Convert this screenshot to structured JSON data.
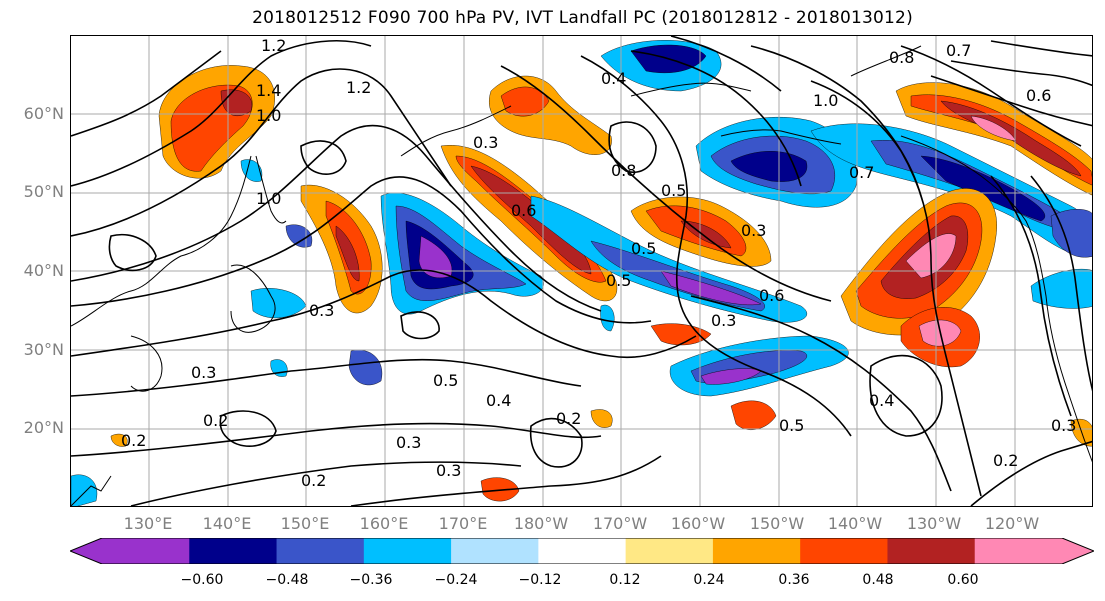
{
  "title": "2018012512 F090 700 hPa PV, IVT Landfall PC (2018012812 - 2018013012)",
  "map": {
    "lat_labels": [
      "60°N",
      "50°N",
      "40°N",
      "30°N",
      "20°N"
    ],
    "lon_labels": [
      "130°E",
      "140°E",
      "150°E",
      "160°E",
      "170°E",
      "180°W",
      "170°W",
      "160°W",
      "150°W",
      "140°W",
      "130°W",
      "120°W"
    ],
    "contour_labels": [
      "1.2",
      "1.4",
      "1.2",
      "1.0",
      "1.0",
      "0.8",
      "0.7",
      "0.6",
      "0.3",
      "0.6",
      "0.5",
      "0.4",
      "0.3",
      "0.5",
      "0.6",
      "0.3",
      "0.5",
      "0.3",
      "0.3",
      "0.5",
      "0.4",
      "0.2",
      "0.3",
      "0.2",
      "0.3",
      "0.2",
      "0.5",
      "0.4",
      "0.2",
      "0.2",
      "0.3",
      "1.0",
      "0.8",
      "0.7"
    ],
    "grid_color": "#aaaaaa"
  },
  "colorbar": {
    "colors": [
      "#9932cc",
      "#00008b",
      "#3a55c9",
      "#00bfff",
      "#b0e2ff",
      "#ffffff",
      "#ffe885",
      "#ffa500",
      "#ff4500",
      "#b22222",
      "#ff88b4"
    ],
    "extend": "both",
    "ticks": [
      "−0.60",
      "−0.48",
      "−0.36",
      "−0.24",
      "−0.12",
      "0.12",
      "0.24",
      "0.36",
      "0.48",
      "0.60"
    ]
  }
}
